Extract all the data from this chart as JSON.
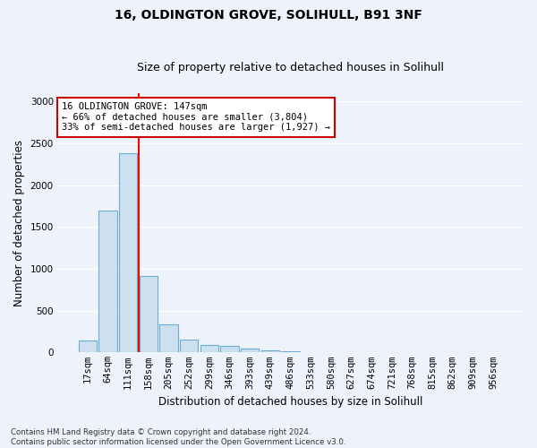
{
  "title_line1": "16, OLDINGTON GROVE, SOLIHULL, B91 3NF",
  "title_line2": "Size of property relative to detached houses in Solihull",
  "xlabel": "Distribution of detached houses by size in Solihull",
  "ylabel": "Number of detached properties",
  "categories": [
    "17sqm",
    "64sqm",
    "111sqm",
    "158sqm",
    "205sqm",
    "252sqm",
    "299sqm",
    "346sqm",
    "393sqm",
    "439sqm",
    "486sqm",
    "533sqm",
    "580sqm",
    "627sqm",
    "674sqm",
    "721sqm",
    "768sqm",
    "815sqm",
    "862sqm",
    "909sqm",
    "956sqm"
  ],
  "values": [
    140,
    1700,
    2380,
    910,
    335,
    155,
    90,
    75,
    45,
    25,
    10,
    5,
    2,
    0,
    0,
    0,
    0,
    0,
    0,
    0,
    0
  ],
  "bar_color": "#cce0f0",
  "bar_edge_color": "#6aaed6",
  "red_line_x": 2.5,
  "annotation_text": "16 OLDINGTON GROVE: 147sqm\n← 66% of detached houses are smaller (3,804)\n33% of semi-detached houses are larger (1,927) →",
  "annotation_box_color": "#ffffff",
  "annotation_box_edge_color": "#cc0000",
  "footnote": "Contains HM Land Registry data © Crown copyright and database right 2024.\nContains public sector information licensed under the Open Government Licence v3.0.",
  "ylim": [
    0,
    3100
  ],
  "yticks": [
    0,
    500,
    1000,
    1500,
    2000,
    2500,
    3000
  ],
  "background_color": "#eef2fa",
  "grid_color": "#ffffff",
  "title_fontsize": 10,
  "subtitle_fontsize": 9,
  "tick_fontsize": 7.5,
  "label_fontsize": 8.5,
  "annot_fontsize": 7.5
}
